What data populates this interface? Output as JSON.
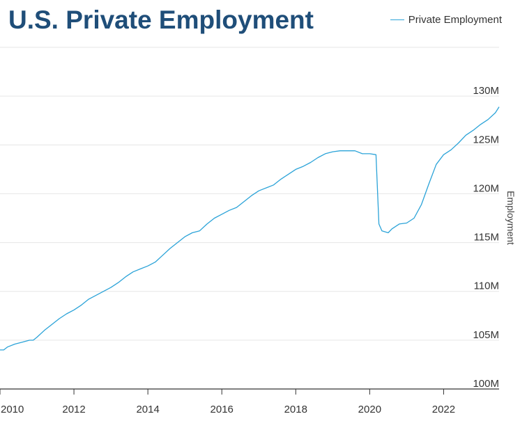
{
  "title": "U.S. Private Employment",
  "legend": {
    "label": "Private Employment",
    "color": "#2ba3d8"
  },
  "colors": {
    "title": "#1f4e79",
    "line": "#2ba3d8",
    "grid": "#e6e6e6",
    "axis": "#333333"
  },
  "chart_data": {
    "type": "line",
    "title": "U.S. Private Employment",
    "xlabel": "",
    "ylabel": "Employment",
    "xlim": [
      2010.0,
      2023.5
    ],
    "ylim": [
      100,
      135
    ],
    "x_ticks": [
      "2010",
      "2012",
      "2014",
      "2016",
      "2018",
      "2020",
      "2022"
    ],
    "y_ticks": [
      "100M",
      "105M",
      "110M",
      "115M",
      "120M",
      "125M",
      "130M"
    ],
    "grid": true,
    "legend_position": "top-right",
    "series": [
      {
        "name": "Private Employment",
        "x": [
          2010.0,
          2010.1,
          2010.2,
          2010.4,
          2010.6,
          2010.8,
          2010.9,
          2011.0,
          2011.2,
          2011.4,
          2011.6,
          2011.8,
          2012.0,
          2012.2,
          2012.4,
          2012.6,
          2012.8,
          2013.0,
          2013.2,
          2013.4,
          2013.6,
          2013.8,
          2014.0,
          2014.2,
          2014.4,
          2014.6,
          2014.8,
          2015.0,
          2015.2,
          2015.4,
          2015.6,
          2015.8,
          2016.0,
          2016.2,
          2016.4,
          2016.6,
          2016.8,
          2017.0,
          2017.2,
          2017.4,
          2017.6,
          2017.8,
          2018.0,
          2018.2,
          2018.4,
          2018.6,
          2018.8,
          2019.0,
          2019.2,
          2019.4,
          2019.6,
          2019.8,
          2020.0,
          2020.17,
          2020.25,
          2020.33,
          2020.5,
          2020.6,
          2020.8,
          2021.0,
          2021.2,
          2021.4,
          2021.6,
          2021.8,
          2022.0,
          2022.2,
          2022.4,
          2022.6,
          2022.8,
          2023.0,
          2023.2,
          2023.4,
          2023.5
        ],
        "values": [
          104.0,
          104.0,
          104.3,
          104.6,
          104.8,
          105.0,
          105.0,
          105.3,
          106.0,
          106.6,
          107.2,
          107.7,
          108.1,
          108.6,
          109.2,
          109.6,
          110.0,
          110.4,
          110.9,
          111.5,
          112.0,
          112.3,
          112.6,
          113.0,
          113.7,
          114.4,
          115.0,
          115.6,
          116.0,
          116.2,
          116.9,
          117.5,
          117.9,
          118.3,
          118.6,
          119.2,
          119.8,
          120.3,
          120.6,
          120.9,
          121.5,
          122.0,
          122.5,
          122.8,
          123.2,
          123.7,
          124.1,
          124.3,
          124.4,
          124.4,
          124.4,
          124.1,
          124.1,
          124.0,
          116.9,
          116.2,
          116.0,
          116.4,
          116.9,
          117.0,
          117.5,
          118.9,
          121.0,
          123.0,
          124.0,
          124.5,
          125.2,
          126.0,
          126.5,
          127.1,
          127.6,
          128.3,
          128.9
        ]
      }
    ]
  }
}
